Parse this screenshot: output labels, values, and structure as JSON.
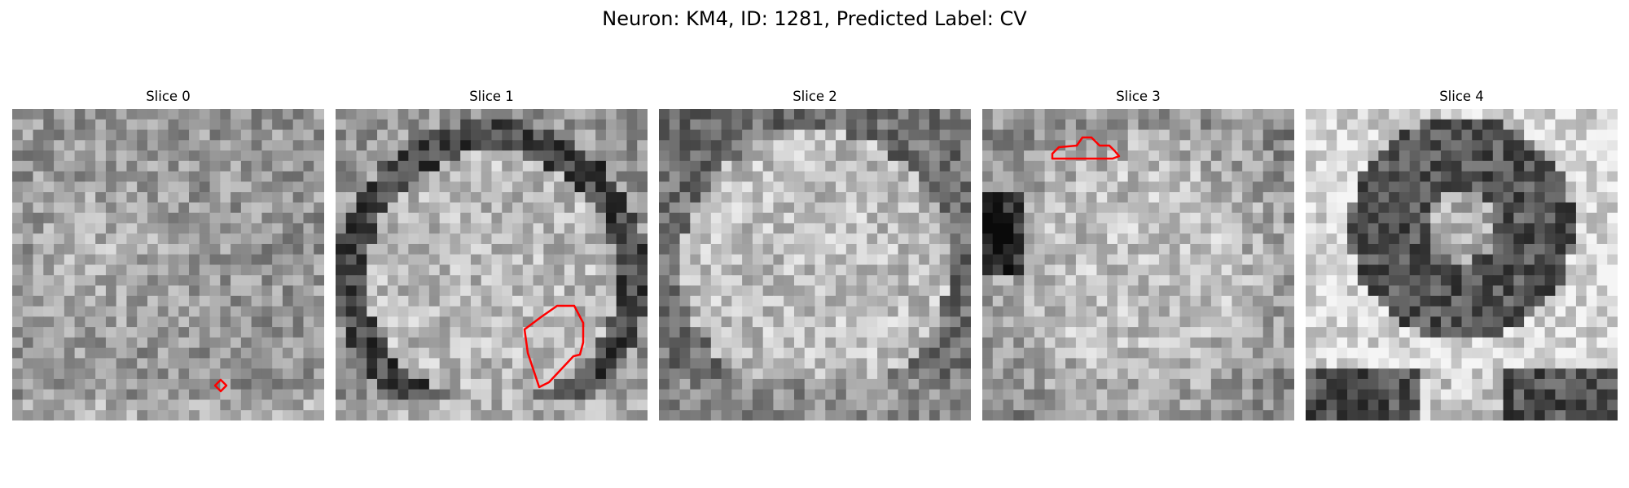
{
  "figure": {
    "title": "Neuron: KM4, ID: 1281, Predicted Label: CV"
  },
  "colors": {
    "contour": "#ff0000",
    "background": "#ffffff"
  },
  "panels": [
    {
      "title": "Slice 0",
      "pattern": "noise",
      "seed": 11,
      "contour": "small-diamond"
    },
    {
      "title": "Slice 1",
      "pattern": "bright-disk-dark-rim",
      "seed": 23,
      "contour": "lower-right-blob"
    },
    {
      "title": "Slice 2",
      "pattern": "bright-disk",
      "seed": 37,
      "contour": "none"
    },
    {
      "title": "Slice 3",
      "pattern": "bright-center-dark-left",
      "seed": 51,
      "contour": "upper-left-sliver"
    },
    {
      "title": "Slice 4",
      "pattern": "dark-ring",
      "seed": 67,
      "contour": "none"
    }
  ]
}
